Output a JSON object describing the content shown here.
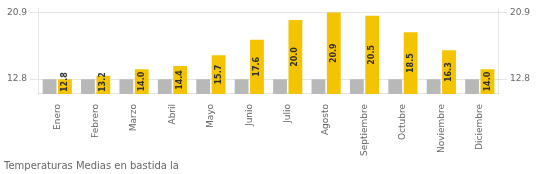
{
  "chart_data": {
    "type": "bar",
    "title": "Temperaturas Medias en bastida la",
    "categories": [
      "Enero",
      "Febrero",
      "Marzo",
      "Abril",
      "Mayo",
      "Junio",
      "Julio",
      "Agosto",
      "Septiembre",
      "Octubre",
      "Noviembre",
      "Diciembre"
    ],
    "series": [
      {
        "color": "#B8B8B8",
        "values": [
          12.8,
          12.8,
          12.8,
          12.8,
          12.8,
          12.8,
          12.8,
          12.8,
          12.8,
          12.8,
          12.8,
          12.8
        ]
      },
      {
        "color": "#F5C400",
        "values": [
          12.8,
          13.2,
          14.0,
          14.4,
          15.7,
          17.6,
          20.0,
          20.9,
          20.5,
          18.5,
          16.3,
          14.0
        ],
        "data_labels": true,
        "value_labels": [
          "12.8",
          "13.2",
          "14.0",
          "14.4",
          "15.7",
          "17.6",
          "20.0",
          "20.9",
          "20.5",
          "18.5",
          "16.3",
          "14.0"
        ]
      }
    ],
    "ylim": [
      11.0,
      21.4
    ],
    "yticks": [
      12.8,
      20.9
    ],
    "y2lim": [
      11.0,
      21.4
    ],
    "y2ticks": [
      12.8,
      20.9
    ],
    "grid": true
  }
}
